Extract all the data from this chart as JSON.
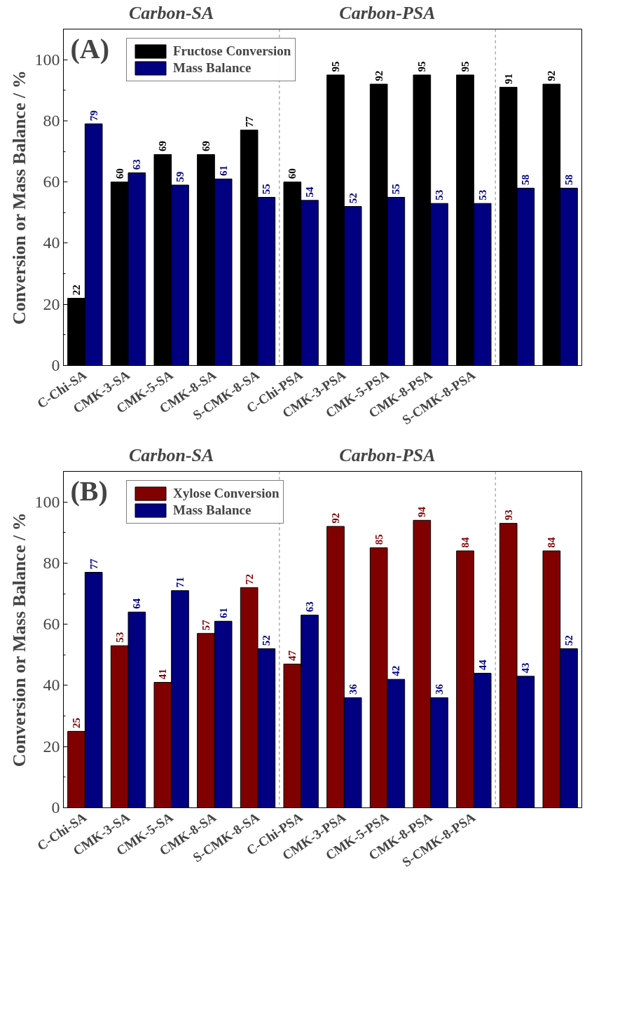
{
  "chart_data": [
    {
      "type": "bar",
      "ylabel": "Conversion or Mass Balance / %",
      "categories": [
        "C-Chi-SA",
        "CMK-3-SA",
        "CMK-5-SA",
        "CMK-8-SA",
        "S-CMK-8-SA",
        "C-Chi-PSA",
        "CMK-3-PSA",
        "CMK-5-PSA",
        "CMK-8-PSA",
        "S-CMK-8-PSA",
        null,
        null
      ],
      "series": [
        {
          "name": "Fructose Conversion",
          "color": "#000000",
          "values": [
            22,
            60,
            69,
            69,
            77,
            60,
            95,
            92,
            95,
            95,
            91,
            92
          ]
        },
        {
          "name": "Mass Balance",
          "color": "#000080",
          "values": [
            79,
            63,
            59,
            61,
            55,
            54,
            52,
            55,
            53,
            53,
            58,
            58
          ]
        }
      ],
      "ylim": [
        0,
        110
      ],
      "yticks": [
        0,
        20,
        40,
        60,
        80,
        100
      ],
      "data_labels": true,
      "legend": "top left",
      "grid": false,
      "annotations": [
        "(A)",
        "Carbon-SA",
        "Carbon-PSA"
      ]
    },
    {
      "type": "bar",
      "ylabel": "Conversion or Mass Balance / %",
      "categories": [
        "C-Chi-SA",
        "CMK-3-SA",
        "CMK-5-SA",
        "CMK-8-SA",
        "S-CMK-8-SA",
        "C-Chi-PSA",
        "CMK-3-PSA",
        "CMK-5-PSA",
        "CMK-8-PSA",
        "S-CMK-8-PSA",
        null,
        null
      ],
      "series": [
        {
          "name": "Xylose Conversion",
          "color": "#800000",
          "values": [
            25,
            53,
            41,
            57,
            72,
            47,
            92,
            85,
            94,
            84,
            93,
            84
          ]
        },
        {
          "name": "Mass Balance",
          "color": "#000080",
          "values": [
            77,
            64,
            71,
            61,
            52,
            63,
            36,
            42,
            36,
            44,
            43,
            52
          ]
        }
      ],
      "ylim": [
        0,
        110
      ],
      "yticks": [
        0,
        20,
        40,
        60,
        80,
        100
      ],
      "data_labels": true,
      "legend": "top left",
      "grid": false,
      "annotations": [
        "(B)",
        "Carbon-SA",
        "Carbon-PSA"
      ]
    }
  ]
}
